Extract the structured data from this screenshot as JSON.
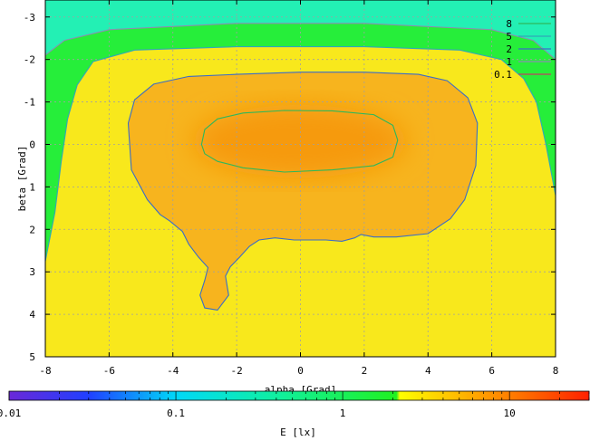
{
  "chart_data": {
    "type": "heatmap",
    "subtype": "contour-over-colormap",
    "xlabel": "alpha [Grad]",
    "ylabel": "beta [Grad]",
    "xlim": [
      -8,
      8
    ],
    "ylim": [
      -3.4,
      5
    ],
    "y_axis_inverted": true,
    "xticks": [
      -8,
      -6,
      -4,
      -2,
      0,
      2,
      4,
      6,
      8
    ],
    "yticks": [
      -3,
      -2,
      -1,
      0,
      1,
      2,
      3,
      4,
      5
    ],
    "xtick_labels": [
      "-8",
      "-6",
      "-4",
      "-2",
      "0",
      "2",
      "4",
      "6",
      "8"
    ],
    "ytick_labels": [
      "-3",
      "-2",
      "-1",
      "0",
      "1",
      "2",
      "3",
      "4",
      "5"
    ],
    "grid": true,
    "legend_position": "top-right",
    "contour_levels": [
      {
        "name": "8",
        "color": "#2db85a"
      },
      {
        "name": "5",
        "color": "#30a8b8"
      },
      {
        "name": "2",
        "color": "#3a6cc8"
      },
      {
        "name": "1",
        "color": "#8a8fb0"
      },
      {
        "name": "0.1",
        "color": "#c04060"
      }
    ],
    "contours": [
      {
        "level": "8",
        "points": [
          [
            -3.1,
            0.0
          ],
          [
            -3.0,
            -0.35
          ],
          [
            -2.6,
            -0.6
          ],
          [
            -1.8,
            -0.74
          ],
          [
            -0.5,
            -0.8
          ],
          [
            1.0,
            -0.79
          ],
          [
            2.3,
            -0.7
          ],
          [
            2.9,
            -0.45
          ],
          [
            3.05,
            -0.1
          ],
          [
            2.9,
            0.3
          ],
          [
            2.3,
            0.5
          ],
          [
            1.0,
            0.6
          ],
          [
            -0.5,
            0.65
          ],
          [
            -1.8,
            0.55
          ],
          [
            -2.6,
            0.4
          ],
          [
            -3.0,
            0.22
          ],
          [
            -3.1,
            0.0
          ]
        ]
      },
      {
        "level": "2",
        "points": [
          [
            -5.4,
            -0.5
          ],
          [
            -5.2,
            -1.05
          ],
          [
            -4.6,
            -1.42
          ],
          [
            -3.5,
            -1.6
          ],
          [
            -2.0,
            -1.65
          ],
          [
            0.0,
            -1.7
          ],
          [
            2.0,
            -1.7
          ],
          [
            3.7,
            -1.65
          ],
          [
            4.6,
            -1.5
          ],
          [
            5.25,
            -1.1
          ],
          [
            5.55,
            -0.5
          ],
          [
            5.5,
            0.5
          ],
          [
            5.15,
            1.3
          ],
          [
            4.7,
            1.75
          ],
          [
            4.0,
            2.1
          ],
          [
            3.0,
            2.18
          ],
          [
            2.3,
            2.18
          ],
          [
            1.9,
            2.12
          ],
          [
            1.7,
            2.2
          ],
          [
            1.3,
            2.28
          ],
          [
            0.8,
            2.25
          ],
          [
            -0.2,
            2.25
          ],
          [
            -0.8,
            2.2
          ],
          [
            -1.3,
            2.25
          ],
          [
            -1.6,
            2.4
          ],
          [
            -1.9,
            2.65
          ],
          [
            -2.2,
            2.88
          ],
          [
            -2.35,
            3.1
          ],
          [
            -2.25,
            3.55
          ],
          [
            -2.6,
            3.9
          ],
          [
            -3.0,
            3.85
          ],
          [
            -3.15,
            3.55
          ],
          [
            -3.0,
            3.2
          ],
          [
            -2.9,
            2.9
          ],
          [
            -3.2,
            2.65
          ],
          [
            -3.5,
            2.35
          ],
          [
            -3.7,
            2.05
          ],
          [
            -4.1,
            1.8
          ],
          [
            -4.4,
            1.65
          ],
          [
            -4.8,
            1.3
          ],
          [
            -5.3,
            0.6
          ],
          [
            -5.4,
            -0.5
          ]
        ]
      },
      {
        "level": "5",
        "points": [
          [
            -8.0,
            2.75
          ],
          [
            -7.7,
            1.6
          ],
          [
            -7.5,
            0.4
          ],
          [
            -7.3,
            -0.6
          ],
          [
            -7.0,
            -1.4
          ],
          [
            -6.5,
            -1.95
          ],
          [
            -5.2,
            -2.22
          ],
          [
            -2.0,
            -2.3
          ],
          [
            2.0,
            -2.3
          ],
          [
            5.0,
            -2.22
          ],
          [
            6.3,
            -2.0
          ],
          [
            7.0,
            -1.55
          ],
          [
            7.4,
            -1.0
          ],
          [
            7.7,
            0.0
          ],
          [
            8.0,
            1.2
          ]
        ]
      },
      {
        "level": "1",
        "points": [
          [
            -8.0,
            -2.1
          ],
          [
            -7.4,
            -2.45
          ],
          [
            -6.0,
            -2.7
          ],
          [
            -2.0,
            -2.85
          ],
          [
            2.0,
            -2.85
          ],
          [
            6.0,
            -2.7
          ],
          [
            7.3,
            -2.45
          ],
          [
            8.0,
            -2.0
          ]
        ]
      }
    ],
    "colorbar": {
      "label": "E [lx]",
      "scale": "log",
      "range": [
        0.01,
        30
      ],
      "tick_labels": [
        "0.01",
        "0.1",
        "1",
        "10"
      ],
      "tick_values": [
        0.01,
        0.1,
        1,
        10
      ],
      "stops": [
        {
          "value": 0.01,
          "color": "#6a28d8"
        },
        {
          "value": 0.03,
          "color": "#2040ff"
        },
        {
          "value": 0.1,
          "color": "#00d8f8"
        },
        {
          "value": 0.4,
          "color": "#10f0a0"
        },
        {
          "value": 2.1,
          "color": "#20f020"
        },
        {
          "value": 2.2,
          "color": "#ffff00"
        },
        {
          "value": 30,
          "color": "#ff2000"
        }
      ]
    }
  }
}
